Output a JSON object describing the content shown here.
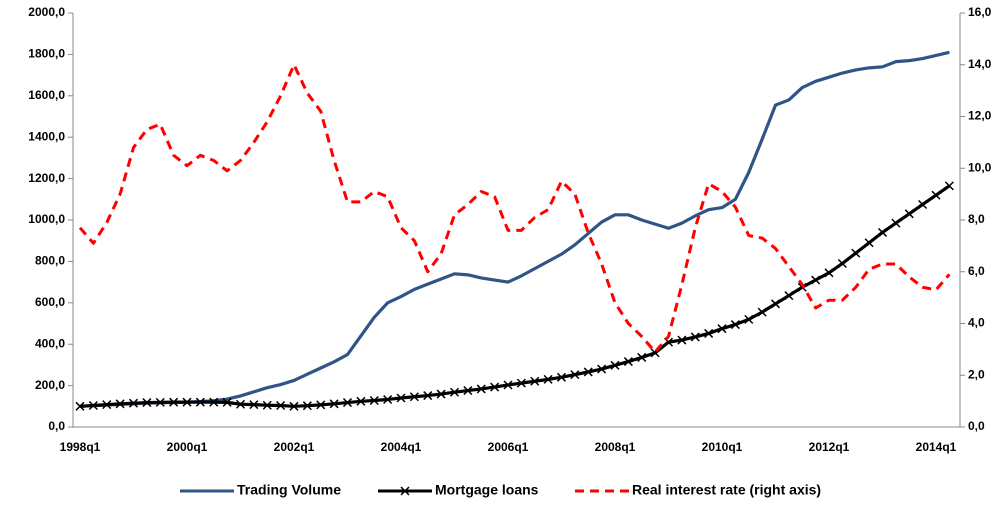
{
  "chart_data": {
    "type": "line",
    "categories": [
      "1998q1",
      null,
      null,
      null,
      null,
      null,
      null,
      null,
      "2000q1",
      null,
      null,
      null,
      null,
      null,
      null,
      null,
      "2002q1",
      null,
      null,
      null,
      null,
      null,
      null,
      null,
      "2004q1",
      null,
      null,
      null,
      null,
      null,
      null,
      null,
      "2006q1",
      null,
      null,
      null,
      null,
      null,
      null,
      null,
      "2008q1",
      null,
      null,
      null,
      null,
      null,
      null,
      null,
      "2010q1",
      null,
      null,
      null,
      null,
      null,
      null,
      null,
      "2012q1",
      null,
      null,
      null,
      null,
      null,
      null,
      null,
      "2014q1",
      null
    ],
    "series": [
      {
        "name": "Trading Volume",
        "color": "#2f5486",
        "dash": false,
        "marker": null,
        "values": [
          100,
          103,
          106,
          109,
          112,
          115,
          117,
          118,
          120,
          123,
          127,
          135,
          150,
          170,
          190,
          205,
          225,
          255,
          285,
          315,
          350,
          440,
          530,
          600,
          630,
          665,
          690,
          715,
          740,
          735,
          720,
          710,
          700,
          730,
          765,
          800,
          835,
          880,
          935,
          990,
          1025,
          1025,
          1000,
          980,
          960,
          985,
          1020,
          1050,
          1060,
          1100,
          1230,
          1390,
          1555,
          1580,
          1640,
          1670,
          1690,
          1710,
          1725,
          1735,
          1740,
          1765,
          1770,
          1780,
          1795,
          1810
        ]
      },
      {
        "name": "Mortgage loans",
        "color": "#000000",
        "dash": false,
        "marker": "x",
        "values": [
          100,
          104,
          108,
          112,
          115,
          118,
          119,
          120,
          120,
          120,
          120,
          119,
          110,
          108,
          105,
          104,
          100,
          103,
          107,
          112,
          118,
          124,
          128,
          133,
          140,
          146,
          152,
          159,
          168,
          176,
          184,
          193,
          203,
          212,
          221,
          230,
          240,
          253,
          266,
          280,
          298,
          316,
          336,
          358,
          410,
          420,
          435,
          452,
          475,
          495,
          520,
          555,
          595,
          635,
          675,
          710,
          745,
          790,
          840,
          890,
          940,
          985,
          1030,
          1075,
          1120,
          1165
        ]
      },
      {
        "name": "Real interest rate (right axis)",
        "color": "#ff0000",
        "dash": true,
        "marker": null,
        "axis": "y2",
        "values": [
          7.7,
          7.1,
          7.9,
          9.0,
          10.8,
          11.5,
          11.7,
          10.5,
          10.1,
          10.5,
          10.3,
          9.9,
          10.3,
          11.0,
          11.8,
          12.8,
          14.0,
          12.9,
          12.2,
          10.3,
          8.7,
          8.7,
          9.1,
          8.9,
          7.7,
          7.2,
          6.0,
          6.7,
          8.2,
          8.6,
          9.1,
          8.9,
          7.6,
          7.6,
          8.1,
          8.4,
          9.5,
          9.0,
          7.5,
          6.3,
          4.8,
          4.0,
          3.5,
          2.9,
          3.5,
          5.5,
          7.7,
          9.4,
          9.1,
          8.5,
          7.4,
          7.3,
          6.9,
          6.2,
          5.5,
          4.6,
          4.9,
          4.9,
          5.4,
          6.1,
          6.3,
          6.3,
          5.8,
          5.4,
          5.3,
          5.9
        ]
      }
    ],
    "ylim": [
      0,
      2000
    ],
    "yticks": [
      {
        "value": 0,
        "label": "0,0"
      },
      {
        "value": 200,
        "label": "200,0"
      },
      {
        "value": 400,
        "label": "400,0"
      },
      {
        "value": 600,
        "label": "600,0"
      },
      {
        "value": 800,
        "label": "800,0"
      },
      {
        "value": 1000,
        "label": "1000,0"
      },
      {
        "value": 1200,
        "label": "1200,0"
      },
      {
        "value": 1400,
        "label": "1400,0"
      },
      {
        "value": 1600,
        "label": "1600,0"
      },
      {
        "value": 1800,
        "label": "1800,0"
      },
      {
        "value": 2000,
        "label": "2000,0"
      }
    ],
    "y2lim": [
      0,
      16
    ],
    "y2ticks": [
      {
        "value": 0,
        "label": "0,0"
      },
      {
        "value": 2,
        "label": "2,0"
      },
      {
        "value": 4,
        "label": "4,0"
      },
      {
        "value": 6,
        "label": "6,0"
      },
      {
        "value": 8,
        "label": "8,0"
      },
      {
        "value": 10,
        "label": "10,0"
      },
      {
        "value": 12,
        "label": "12,0"
      },
      {
        "value": 14,
        "label": "14,0"
      },
      {
        "value": 16,
        "label": "16,0"
      }
    ],
    "grid": false,
    "legend": "bottom"
  }
}
